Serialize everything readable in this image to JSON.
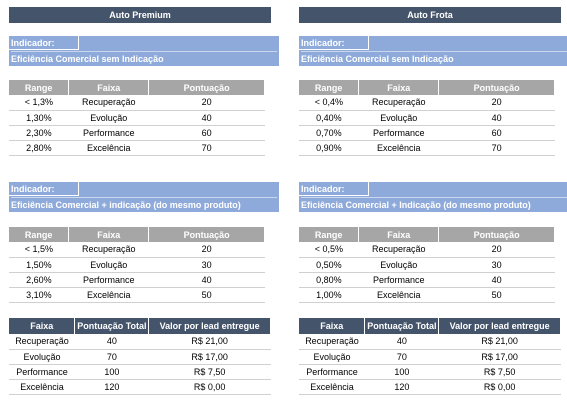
{
  "left": {
    "title": "Auto Premium",
    "block1": {
      "label": "Indicador:",
      "desc": "Eficiência Comercial sem Indicação",
      "headers": [
        "Range",
        "Faixa",
        "Pontuação"
      ],
      "rows": [
        [
          "< 1,3%",
          "Recuperação",
          "20"
        ],
        [
          "1,30%",
          "Evolução",
          "40"
        ],
        [
          "2,30%",
          "Performance",
          "60"
        ],
        [
          "2,80%",
          "Excelência",
          "70"
        ]
      ]
    },
    "block2": {
      "label": "Indicador:",
      "desc": "Eficiência Comercial + indicação (do mesmo produto)",
      "headers": [
        "Range",
        "Faixa",
        "Pontuação"
      ],
      "rows": [
        [
          "< 1,5%",
          "Recuperação",
          "20"
        ],
        [
          "1,50%",
          "Evolução",
          "30"
        ],
        [
          "2,60%",
          "Performance",
          "40"
        ],
        [
          "3,10%",
          "Excelência",
          "50"
        ]
      ]
    },
    "leads": {
      "headers": [
        "Faixa",
        "Pontuação Total",
        "Valor por lead entregue"
      ],
      "rows": [
        [
          "Recuperação",
          "40",
          "R$ 21,00"
        ],
        [
          "Evolução",
          "70",
          "R$ 17,00"
        ],
        [
          "Performance",
          "100",
          "R$ 7,50"
        ],
        [
          "Excelência",
          "120",
          "R$ 0,00"
        ]
      ]
    }
  },
  "right": {
    "title": "Auto Frota",
    "block1": {
      "label": "Indicador:",
      "desc": "Eficiência Comercial sem Indicação",
      "headers": [
        "Range",
        "Faixa",
        "Pontuação"
      ],
      "rows": [
        [
          "< 0,4%",
          "Recuperação",
          "20"
        ],
        [
          "0,40%",
          "Evolução",
          "40"
        ],
        [
          "0,70%",
          "Performance",
          "60"
        ],
        [
          "0,90%",
          "Excelência",
          "70"
        ]
      ]
    },
    "block2": {
      "label": "Indicador:",
      "desc": "Eficiência Comercial + Indicação (do mesmo produto)",
      "headers": [
        "Range",
        "Faixa",
        "Pontuação"
      ],
      "rows": [
        [
          "< 0,5%",
          "Recuperação",
          "20"
        ],
        [
          "0,50%",
          "Evolução",
          "30"
        ],
        [
          "0,80%",
          "Performance",
          "40"
        ],
        [
          "1,00%",
          "Excelência",
          "50"
        ]
      ]
    },
    "leads": {
      "headers": [
        "Faixa",
        "Pontuação Total",
        "Valor por lead entregue"
      ],
      "rows": [
        [
          "Recuperação",
          "40",
          "R$ 21,00"
        ],
        [
          "Evolução",
          "70",
          "R$ 17,00"
        ],
        [
          "Performance",
          "100",
          "R$ 7,50"
        ],
        [
          "Excelência",
          "120",
          "R$ 0,00"
        ]
      ]
    }
  }
}
